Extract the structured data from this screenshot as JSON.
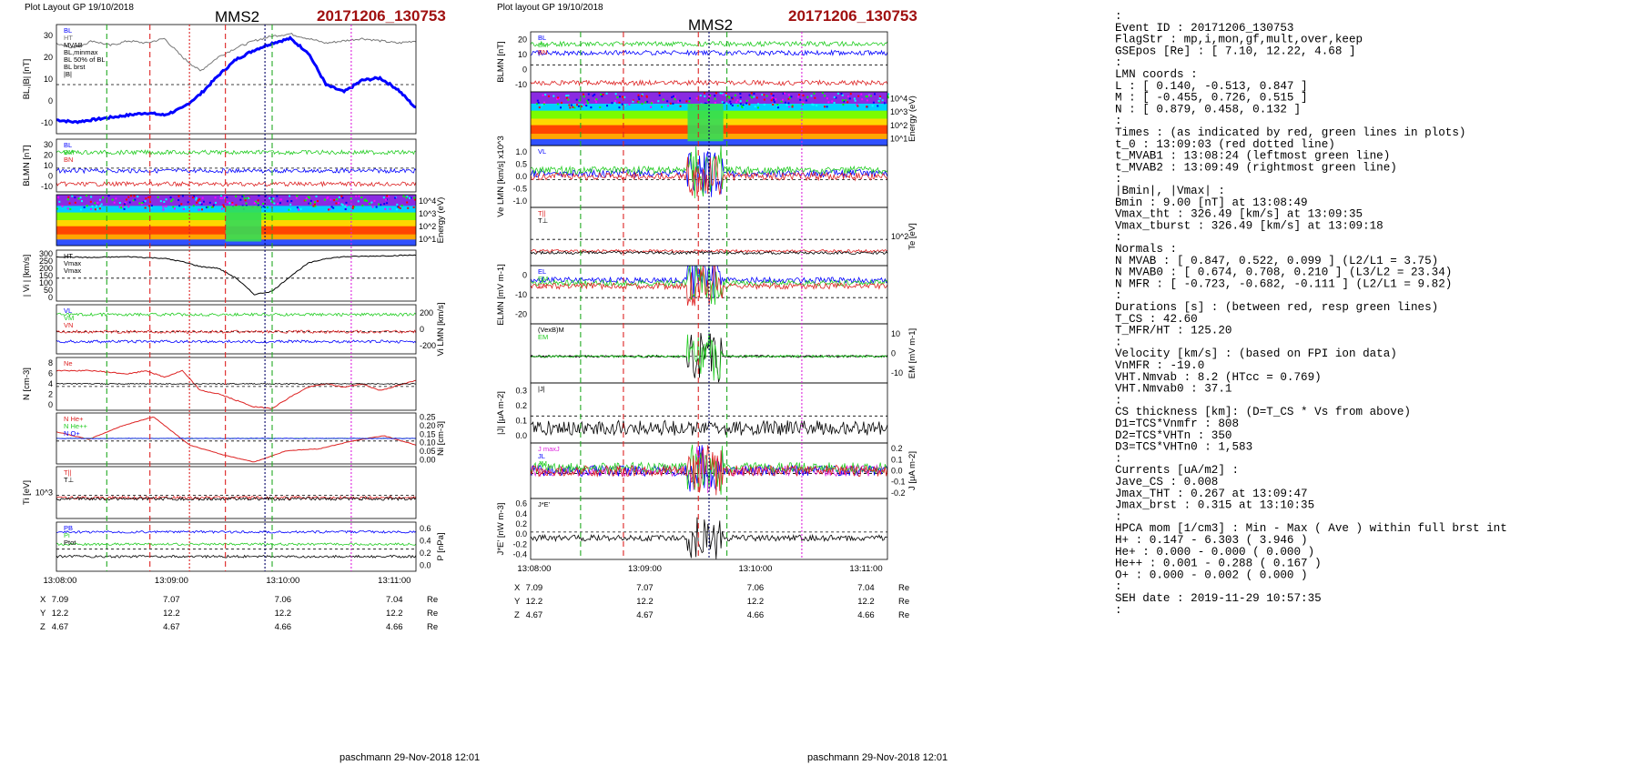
{
  "left_plot": {
    "header": "Plot Layout GP 19/10/2018",
    "spacecraft": "MMS2",
    "event": "20171206_130753",
    "footer": "paschmann 29-Nov-2018 12:01",
    "time_ticks": [
      "13:08:00",
      "13:09:00",
      "13:10:00",
      "13:11:00"
    ],
    "position_rows": [
      {
        "label": "X",
        "values": [
          "7.09",
          "7.07",
          "7.06",
          "7.04"
        ],
        "unit": "Re"
      },
      {
        "label": "Y",
        "values": [
          "12.2",
          "12.2",
          "12.2",
          "12.2"
        ],
        "unit": "Re"
      },
      {
        "label": "Z",
        "values": [
          "4.67",
          "4.67",
          "4.66",
          "4.66"
        ],
        "unit": "Re"
      }
    ]
  },
  "right_plot": {
    "header": "Plot layout GP 19/10/2018",
    "spacecraft": "MMS2",
    "event": "20171206_130753",
    "footer": "paschmann 29-Nov-2018 12:01",
    "time_ticks": [
      "13:08:00",
      "13:09:00",
      "13:10:00",
      "13:11:00"
    ],
    "position_rows": [
      {
        "label": "X",
        "values": [
          "7.09",
          "7.07",
          "7.06",
          "7.04"
        ],
        "unit": "Re"
      },
      {
        "label": "Y",
        "values": [
          "12.2",
          "12.2",
          "12.2",
          "12.2"
        ],
        "unit": "Re"
      },
      {
        "label": "Z",
        "values": [
          "4.67",
          "4.67",
          "4.66",
          "4.66"
        ],
        "unit": "Re"
      }
    ]
  },
  "summary_lines": [
    ":",
    " Event ID          : 20171206_130753",
    " FlagStr           : mp,i,mon,gf,mult,over,keep",
    " GSEpos [Re]       : [ 7.10, 12.22, 4.68 ]",
    "                   :",
    " LMN coords        :",
    "    L              : [  0.140, -0.513,  0.847 ]",
    "    M              : [ -0.455,  0.726,  0.515 ]",
    "    N              : [  0.879,  0.458,  0.132 ]",
    "                   :",
    "  Times            : (as indicated by red, green lines in plots)",
    "    t_0            : 13:09:03  (red dotted line)",
    "    t_MVAB1        : 13:08:24  (leftmost green line)",
    "    t_MVAB2        : 13:09:49  (rightmost green line)",
    "                   :",
    "|Bmin|, |Vmax|     :",
    "    Bmin           : 9.00 [nT]  at 13:08:49",
    "    Vmax_tht       : 326.49 [km/s]  at 13:09:35",
    "    Vmax_tburst    : 326.49 [km/s]  at 13:09:18",
    "                   :",
    " Normals           :",
    "    N MVAB         : [  0.847,  0.522,  0.099 ]   (L2/L1 = 3.75)",
    "    N MVAB0        : [  0.674,  0.708,  0.210 ]   (L3/L2 = 23.34)",
    "    N MFR          : [ -0.723, -0.682, -0.111 ]   (L2/L1 = 9.82)",
    "                   :",
    " Durations [s]     : (between red, resp green lines)",
    "    T_CS           : 42.60",
    "    T_MFR/HT       : 125.20",
    "                   :",
    " Velocity [km/s]   : (based on FPI ion data)",
    "    VnMFR          : -19.0",
    "    VHT.Nmvab      : 8.2  (HTcc = 0.769)",
    "    VHT.Nmvab0     : 37.1",
    "                   :",
    " CS thickness [km]: (D=T_CS * Vs from above)",
    "    D1=TCS*Vnmfr   : 808",
    "    D2=TCS*VHTn    : 350",
    "    D3=TCS*VHTn0   : 1,583",
    "                   :",
    " Currents [uA/m2]  :",
    "    Jave_CS        : 0.008",
    "    Jmax_THT       : 0.267  at 13:09:47",
    "    Jmax_brst      : 0.315  at 13:10:35",
    "                   :",
    " HPCA mom [1/cm3]  :   Min   -  Max    (  Ave   )  within full brst int",
    "    H+             :  0.147 -  6.303  (  3.946 )",
    "    He+            :  0.000 -  0.000  (  0.000 )",
    "    He++           :  0.001 -  0.288  (  0.167 )",
    "    O+             :  0.000 -  0.002  (  0.000 )",
    "                   :",
    " SEH date          : 2019-11-29 10:57:35",
    "                   :"
  ],
  "chart_data": [
    {
      "type": "line",
      "panel": "left-1",
      "ylabel": "BL,|B| [nT]",
      "ylim": [
        -15,
        32
      ],
      "yticks": [
        "-10",
        "0",
        "10",
        "20",
        "30"
      ],
      "legend": [
        "BL",
        "HT",
        "MVAB",
        "BL,minmax",
        "BL 50% of BL",
        "BL brst",
        "|B|"
      ],
      "colors": {
        "bl": "#0000ff",
        "btot": "#777777"
      },
      "series": [
        {
          "name": "BL",
          "x": [
            0,
            0.05,
            0.1,
            0.15,
            0.2,
            0.25,
            0.3,
            0.35,
            0.4,
            0.45,
            0.5,
            0.55,
            0.6,
            0.65,
            0.7,
            0.75,
            0.8,
            0.85,
            0.9,
            0.95,
            1
          ],
          "y": [
            -9,
            -10,
            -9,
            -8,
            -7,
            -6,
            -7,
            -4,
            2,
            10,
            17,
            21,
            24,
            26,
            20,
            6,
            3,
            8,
            9,
            4,
            -4
          ]
        },
        {
          "name": "|B|",
          "x": [
            0,
            0.05,
            0.1,
            0.15,
            0.2,
            0.25,
            0.3,
            0.35,
            0.4,
            0.45,
            0.5,
            0.55,
            0.6,
            0.65,
            0.7,
            0.75,
            0.8,
            0.85,
            0.9,
            0.95,
            1
          ],
          "y": [
            24,
            22,
            25,
            23,
            25,
            24,
            26,
            18,
            12,
            18,
            22,
            25,
            27,
            28,
            26,
            24,
            25,
            26,
            25,
            24,
            25
          ]
        }
      ]
    },
    {
      "type": "line",
      "panel": "left-2",
      "ylabel": "BLMN [nT]",
      "ylim": [
        -15,
        32
      ],
      "yticks": [
        "-10",
        "0",
        "10",
        "20",
        "30"
      ],
      "legend": [
        "BL",
        "BM",
        "BN"
      ]
    },
    {
      "type": "heatmap",
      "panel": "left-3",
      "ylabel": "Energy (eV)",
      "yticks": [
        "10^1",
        "10^2",
        "10^3",
        "10^4"
      ]
    },
    {
      "type": "line",
      "panel": "left-4",
      "ylabel": "| Vi | [km/s]",
      "ylim": [
        0,
        310
      ],
      "yticks": [
        "0",
        "50",
        "100",
        "150",
        "200",
        "250",
        "300"
      ],
      "legend": [
        "HT",
        "Vmax",
        "Vmax"
      ],
      "series": [
        {
          "name": "|Vi|",
          "x": [
            0,
            0.1,
            0.2,
            0.3,
            0.35,
            0.4,
            0.45,
            0.5,
            0.55,
            0.6,
            0.65,
            0.7,
            0.75,
            0.8,
            0.9,
            1
          ],
          "y": [
            270,
            265,
            270,
            260,
            240,
            210,
            200,
            140,
            40,
            60,
            150,
            230,
            260,
            270,
            275,
            280
          ]
        }
      ]
    },
    {
      "type": "line",
      "panel": "left-5",
      "ylabel": "Vi LMN [km/s]",
      "ylim": [
        -250,
        250
      ],
      "yticks": [
        "-200",
        "0",
        "200"
      ],
      "legend": [
        "VL",
        "VM",
        "VN"
      ]
    },
    {
      "type": "line",
      "panel": "left-6",
      "ylabel": "N [cm-3]",
      "ylim": [
        0,
        8
      ],
      "yticks": [
        "0",
        "2",
        "4",
        "6",
        "8"
      ],
      "legend": [
        "Ne"
      ],
      "series": [
        {
          "name": "Ne",
          "x": [
            0,
            0.1,
            0.2,
            0.25,
            0.3,
            0.35,
            0.4,
            0.45,
            0.5,
            0.55,
            0.6,
            0.65,
            0.7,
            0.75,
            0.8,
            0.85,
            0.9,
            1
          ],
          "y": [
            6,
            6,
            5.5,
            6,
            5,
            6,
            3,
            2.5,
            1.5,
            0.5,
            0.3,
            2,
            3.5,
            4,
            3.5,
            4,
            3,
            4.5
          ]
        }
      ]
    },
    {
      "type": "line",
      "panel": "left-7",
      "ylabel": "Ni [cm-3]",
      "ylim": [
        0,
        0.27
      ],
      "yticks": [
        "0.00",
        "0.05",
        "0.10",
        "0.15",
        "0.20",
        "0.25"
      ],
      "legend": [
        "N He+",
        "N He++",
        "N O+"
      ],
      "series": [
        {
          "name": "N He++",
          "x": [
            0,
            0.09,
            0.18,
            0.27,
            0.37,
            0.46,
            0.55,
            0.64,
            0.73,
            0.82,
            0.91,
            1
          ],
          "y": [
            0.17,
            0.13,
            0.2,
            0.25,
            0.1,
            0.05,
            0.01,
            0.07,
            0.08,
            0.12,
            0.15,
            0.1
          ]
        }
      ]
    },
    {
      "type": "line",
      "panel": "left-8",
      "ylabel": "Ti [eV]",
      "yticks": [
        "10^3"
      ],
      "legend": [
        "T||",
        "T⊥"
      ]
    },
    {
      "type": "line",
      "panel": "left-9",
      "ylabel": "P [nPa]",
      "ylim": [
        0,
        0.65
      ],
      "yticks": [
        "0.0",
        "0.2",
        "0.4",
        "0.6"
      ],
      "legend": [
        "PB",
        "Pi",
        "Ptot"
      ]
    },
    {
      "type": "line",
      "panel": "right-1",
      "ylabel": "BLMN [nT]",
      "yticks": [
        "-10",
        "0",
        "10",
        "20"
      ],
      "legend": [
        "BL",
        "BM",
        "BN"
      ]
    },
    {
      "type": "heatmap",
      "panel": "right-2",
      "ylabel": "Energy (eV)",
      "yticks": [
        "10^1",
        "10^2",
        "10^3",
        "10^4"
      ]
    },
    {
      "type": "line",
      "panel": "right-3",
      "ylabel": "Ve LMN [km/s] x10^3",
      "yticks": [
        "-1.0",
        "-0.5",
        "0.0",
        "0.5",
        "1.0"
      ],
      "legend": [
        "VL"
      ]
    },
    {
      "type": "line",
      "panel": "right-4",
      "ylabel": "Te [eV]",
      "yticks": [
        "10^2"
      ],
      "legend": [
        "T||",
        "T⊥"
      ]
    },
    {
      "type": "line",
      "panel": "right-5",
      "ylabel": "ELMN [mV m-1]",
      "yticks": [
        "-20",
        "-10",
        "0"
      ],
      "legend": [
        "EL",
        "EM",
        "EN"
      ]
    },
    {
      "type": "line",
      "panel": "right-6",
      "ylabel": "EM [mV m-1]",
      "yticks": [
        "-10",
        "0",
        "10"
      ],
      "legend": [
        "(VexB)M",
        "EM"
      ]
    },
    {
      "type": "line",
      "panel": "right-7",
      "ylabel": "|J| [μA m-2]",
      "yticks": [
        "0.0",
        "0.1",
        "0.2",
        "0.3"
      ],
      "legend": [
        "|J|"
      ]
    },
    {
      "type": "line",
      "panel": "right-8",
      "ylabel": "J [μA m-2]",
      "yticks": [
        "-0.2",
        "-0.1",
        "0.0",
        "0.1",
        "0.2"
      ],
      "legend": [
        "J maxJ",
        "JL",
        "JM",
        "JN"
      ]
    },
    {
      "type": "line",
      "panel": "right-9",
      "ylabel": "J*E' [nW m-3]",
      "yticks": [
        "-0.4",
        "-0.2",
        "0.0",
        "0.2",
        "0.4",
        "0.6"
      ],
      "legend": [
        "J*E'"
      ]
    }
  ]
}
